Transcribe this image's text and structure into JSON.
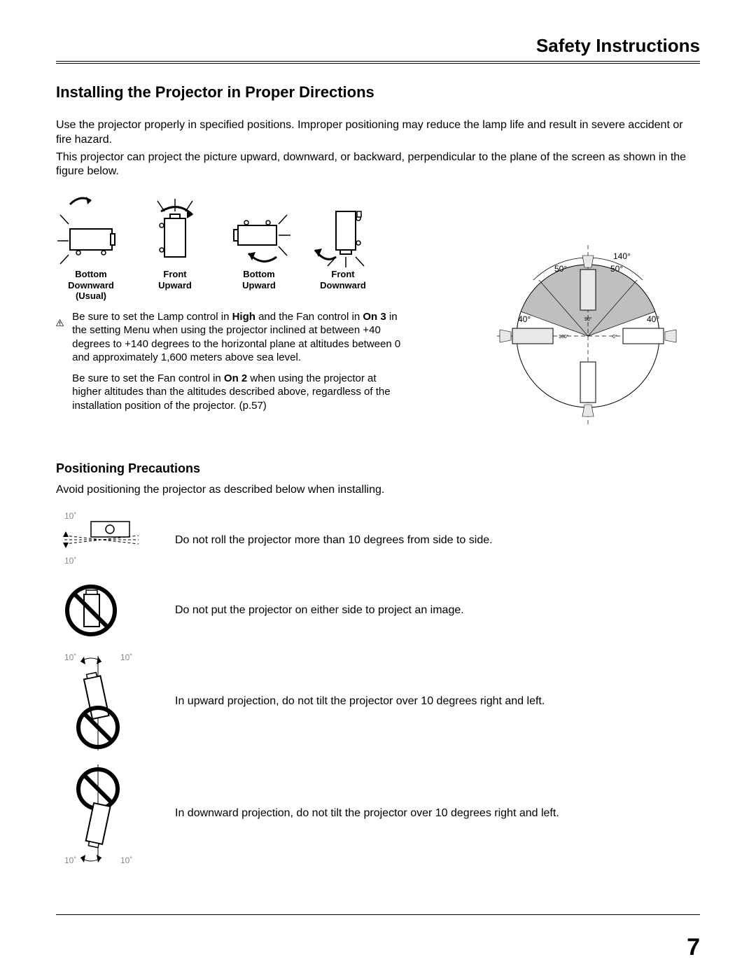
{
  "header": {
    "title": "Safety Instructions"
  },
  "section": {
    "title": "Installing the Projector in Proper Directions"
  },
  "intro": {
    "p1": "Use the projector properly in specified positions. Improper positioning may reduce the lamp life and result in severe accident or fire hazard.",
    "p2": "This projector can project the picture upward, downward, or backward, perpendicular to the plane of the screen as shown in the figure below."
  },
  "orientations": [
    {
      "label": "Bottom\nDownward\n(Usual)"
    },
    {
      "label": "Front\nUpward"
    },
    {
      "label": "Bottom\nUpward"
    },
    {
      "label": "Front\nDownward"
    }
  ],
  "caution": {
    "p1_pre": "Be sure to set the Lamp control in ",
    "p1_b1": "High",
    "p1_mid": " and the Fan control in ",
    "p1_b2": "On 3",
    "p1_post": " in the setting Menu when using the projector inclined at between +40 degrees to +140 degrees to the horizontal plane at altitudes between 0 and approximately 1,600 meters above sea level.",
    "p2_pre": "Be sure to set the Fan control in ",
    "p2_b1": "On 2",
    "p2_post": " when using the projector at higher altitudes than the altitudes described above, regardless of the installation position of the projector. (p.57)"
  },
  "angle_diagram": {
    "top_label": "140°",
    "left_upper": "50°",
    "right_upper": "50°",
    "left_lower": "40°",
    "right_lower": "40°",
    "inner_top": "90°",
    "inner_left": "180°",
    "inner_right": "0°",
    "colors": {
      "shaded": "#bfbfbf",
      "line": "#000000"
    }
  },
  "subsection": {
    "title": "Positioning Precautions"
  },
  "subsection_intro": "Avoid positioning the projector as described below when installing.",
  "precautions": [
    {
      "text": "Do not roll the projector more than 10 degrees from side to side.",
      "angle_top": "10˚",
      "angle_bottom": "10˚"
    },
    {
      "text": "Do not put the projector on either side to project an image."
    },
    {
      "text": "In upward projection, do not tilt the projector over 10 degrees right and left.",
      "angle_left": "10˚",
      "angle_right": "10˚"
    },
    {
      "text": "In downward projection, do not tilt the projector over 10 degrees right and left.",
      "angle_left": "10˚",
      "angle_right": "10˚"
    }
  ],
  "page_number": "7"
}
